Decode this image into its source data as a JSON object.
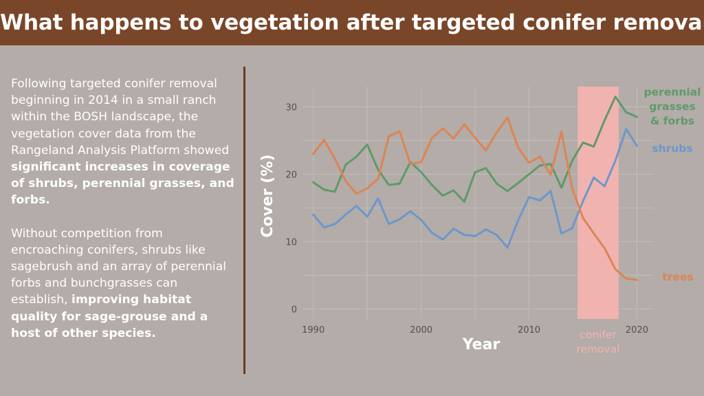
{
  "header": {
    "title": "What happens to vegetation after targeted conifer removal?"
  },
  "sidebar_text": {
    "p1_plain": "Following targeted conifer removal beginning in 2014 in a small ranch within the BOSH landscape, the vegetation cover data from the Rangeland Analysis Platform showed ",
    "p1_bold": "significant increases in coverage of shrubs, perennial grasses, and forbs.",
    "p2_plain": "Without competition from encroaching conifers, shrubs like sagebrush and an array of perennial forbs and bunchgrasses can establish, ",
    "p2_bold": "improving habitat quality for sage-grouse and a host of other species."
  },
  "chart_data": {
    "type": "line",
    "title": "",
    "xlabel": "Year",
    "ylabel": "Cover (%)",
    "xlim": [
      1989,
      2021.5
    ],
    "ylim": [
      -1.5,
      33
    ],
    "xticks": [
      1990,
      2000,
      2010,
      2020
    ],
    "yticks": [
      0,
      10,
      20,
      30
    ],
    "grid": true,
    "legend": "direct labels at right end of lines",
    "x": [
      1990,
      1991,
      1992,
      1993,
      1994,
      1995,
      1996,
      1997,
      1998,
      1999,
      2000,
      2001,
      2002,
      2003,
      2004,
      2005,
      2006,
      2007,
      2008,
      2009,
      2010,
      2011,
      2012,
      2013,
      2014,
      2015,
      2016,
      2017,
      2018,
      2019,
      2020
    ],
    "series": [
      {
        "name": "perennial grasses & forbs",
        "label_lines": [
          "perennial",
          "grasses",
          "& forbs"
        ],
        "color": "#5e9a6a",
        "values": [
          18.8,
          17.7,
          17.4,
          21.4,
          22.6,
          24.4,
          20.7,
          18.4,
          18.6,
          21.8,
          20.3,
          18.4,
          16.8,
          17.6,
          15.9,
          20.3,
          20.9,
          18.6,
          17.5,
          18.7,
          20.0,
          21.3,
          21.5,
          18.0,
          22.0,
          24.7,
          24.1,
          28.0,
          31.5,
          29.2,
          28.5
        ]
      },
      {
        "name": "shrubs",
        "label_lines": [
          "shrubs"
        ],
        "color": "#6c97cc",
        "values": [
          14.0,
          12.1,
          12.6,
          14.0,
          15.3,
          13.7,
          16.4,
          12.6,
          13.3,
          14.5,
          13.2,
          11.3,
          10.3,
          11.9,
          11.0,
          10.8,
          11.8,
          11.0,
          9.1,
          13.2,
          16.6,
          16.1,
          17.5,
          11.2,
          12.0,
          16.0,
          19.5,
          18.2,
          22.0,
          26.7,
          24.2
        ]
      },
      {
        "name": "trees",
        "label_lines": [
          "trees"
        ],
        "color": "#db8554",
        "values": [
          23.0,
          25.1,
          22.3,
          19.0,
          17.1,
          17.9,
          19.3,
          25.6,
          26.4,
          21.5,
          21.8,
          25.4,
          26.8,
          25.3,
          27.4,
          25.4,
          23.5,
          26.2,
          28.4,
          23.9,
          21.7,
          22.6,
          19.9,
          26.3,
          17.9,
          13.5,
          11.2,
          9.0,
          5.9,
          4.5,
          4.3
        ]
      }
    ],
    "annotation": {
      "label_lines": [
        "conifer",
        "removal"
      ],
      "x_start": 2014.5,
      "x_end": 2018.3,
      "color": "#f4b3b0",
      "text_color": "#f4b3b0"
    }
  }
}
